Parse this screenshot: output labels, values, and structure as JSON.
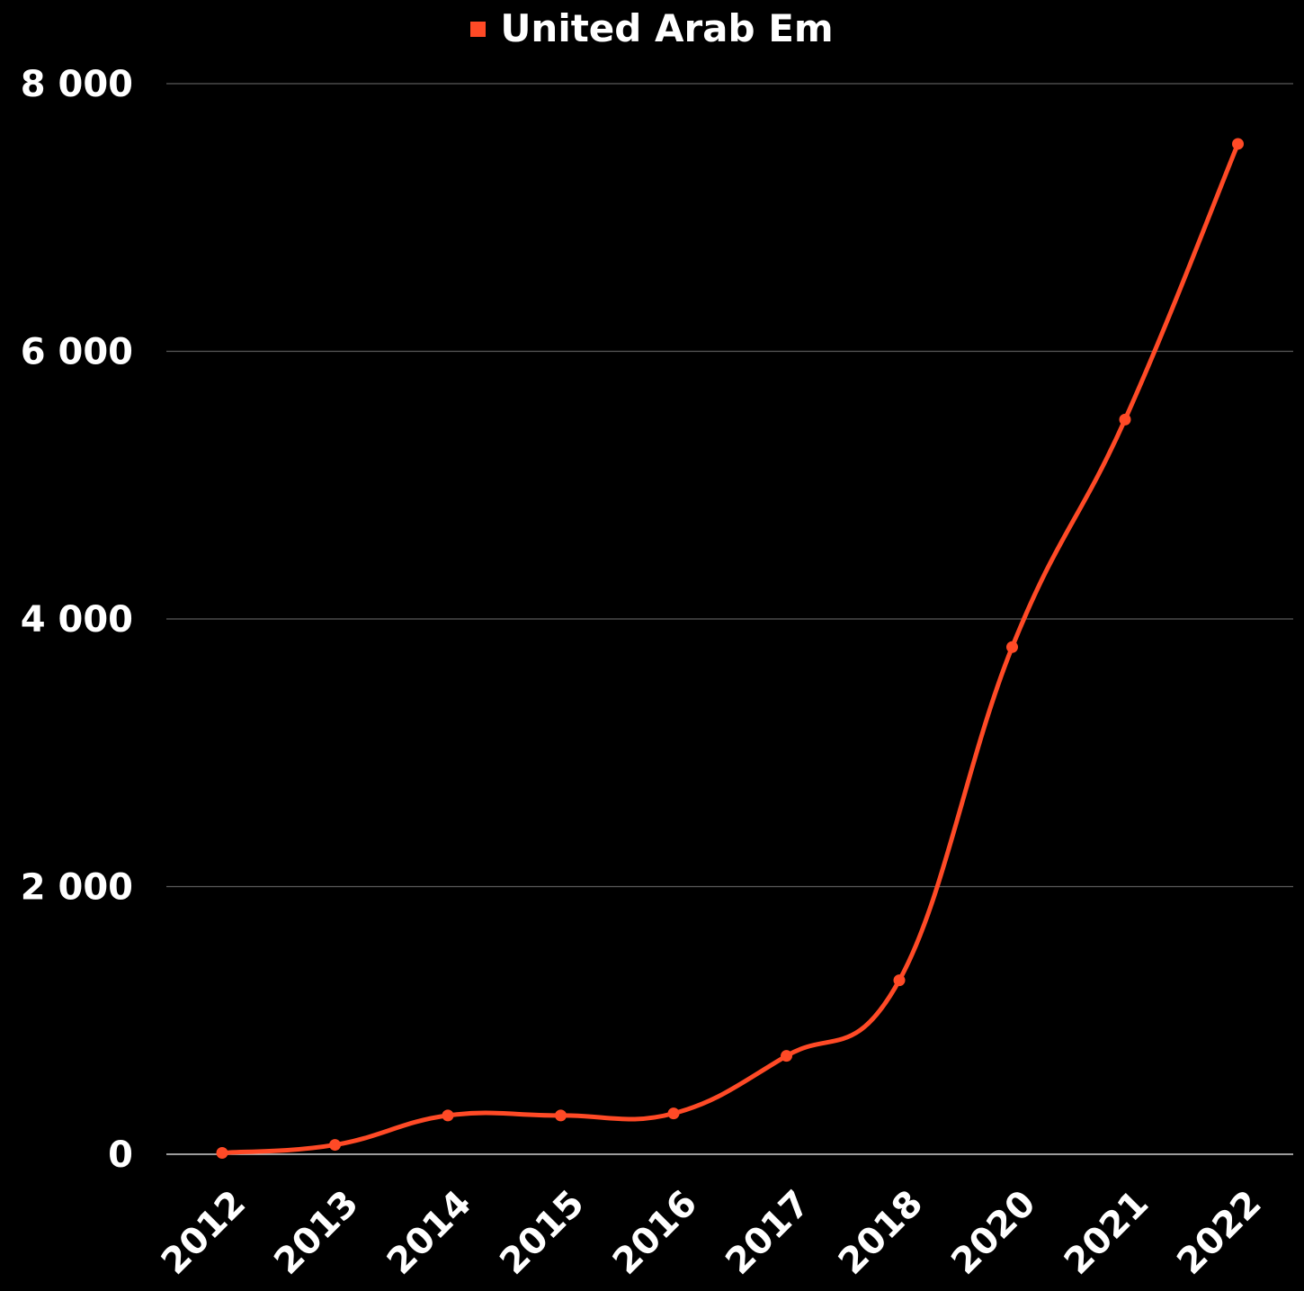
{
  "chart_data": {
    "type": "line",
    "title": "",
    "xlabel": "",
    "ylabel": "",
    "categories": [
      "2012",
      "2013",
      "2014",
      "2015",
      "2016",
      "2017",
      "2018",
      "2020",
      "2021",
      "2022"
    ],
    "series": [
      {
        "name": "United Arab Em",
        "color": "#FF4A26",
        "values": [
          10,
          70,
          290,
          290,
          305,
          735,
          1300,
          3790,
          5490,
          7550
        ]
      }
    ],
    "ylim": [
      0,
      8000
    ],
    "yticks": [
      0,
      2000,
      4000,
      6000,
      8000
    ],
    "ytick_labels": [
      "0",
      "2 000",
      "4 000",
      "6 000",
      "8 000"
    ],
    "grid": true,
    "legend_position": "top-center",
    "smooth": true,
    "markers": true
  },
  "colors": {
    "background": "#000000",
    "gridline": "#5a5a5a",
    "text": "#ffffff"
  }
}
